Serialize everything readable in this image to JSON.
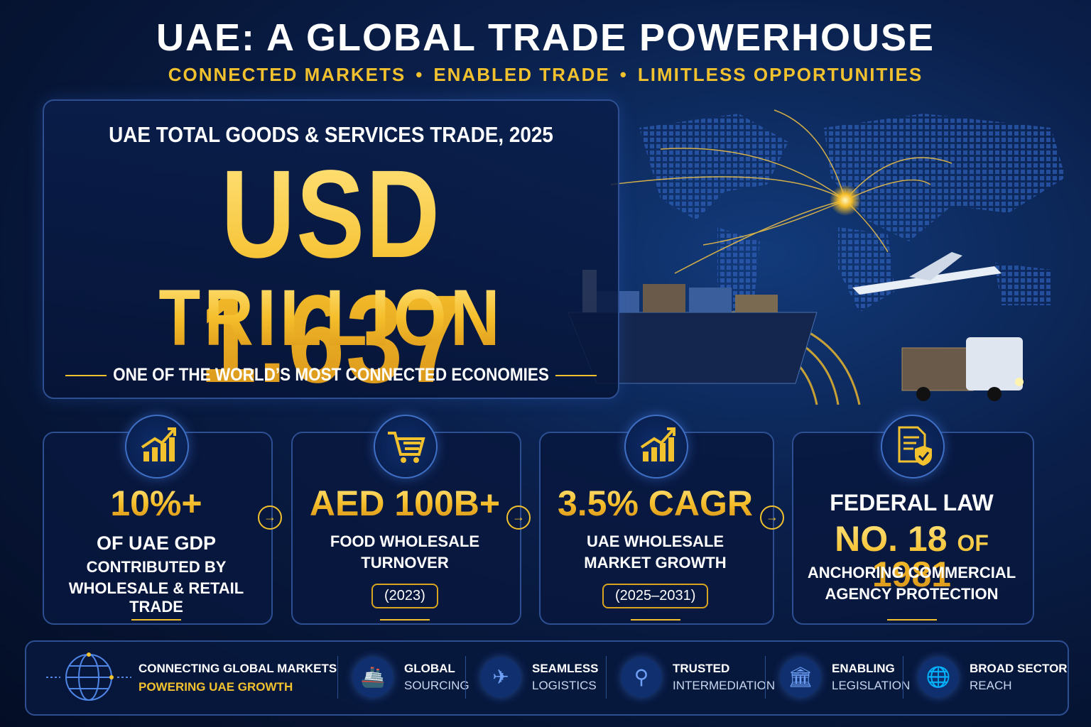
{
  "header": {
    "title": "UAE: A GLOBAL TRADE POWERHOUSE",
    "tagline": [
      "CONNECTED MARKETS",
      "ENABLED TRADE",
      "LIMITLESS OPPORTUNITIES"
    ]
  },
  "hero": {
    "label": "UAE TOTAL GOODS & SERVICES TRADE, 2025",
    "amount": "USD 1.637",
    "unit": "TRILLION",
    "caption": "ONE OF THE WORLD’S MOST CONNECTED ECONOMIES"
  },
  "stats": [
    {
      "value": "10%+",
      "lines": [
        "OF UAE GDP",
        "CONTRIBUTED BY",
        "WHOLESALE & RETAIL TRADE"
      ]
    },
    {
      "value": "AED 100B+",
      "lines": [
        "FOOD WHOLESALE",
        "TURNOVER"
      ],
      "note": "(2023)"
    },
    {
      "value": "3.5% CAGR",
      "lines": [
        "UAE WHOLESALE",
        "MARKET GROWTH"
      ],
      "note": "(2025–2031)"
    },
    {
      "heading": "FEDERAL LAW",
      "value_parts": [
        "NO. 18",
        "OF",
        "1981"
      ],
      "lines": [
        "ANCHORING COMMERCIAL",
        "AGENCY PROTECTION"
      ]
    }
  ],
  "footer": {
    "intro": [
      "CONNECTING GLOBAL MARKETS",
      "POWERING UAE GROWTH"
    ],
    "pillars": [
      [
        "GLOBAL",
        "SOURCING"
      ],
      [
        "SEAMLESS",
        "LOGISTICS"
      ],
      [
        "TRUSTED",
        "INTERMEDIATION"
      ],
      [
        "ENABLING",
        "LEGISLATION"
      ],
      [
        "BROAD SECTOR",
        "REACH"
      ]
    ]
  }
}
